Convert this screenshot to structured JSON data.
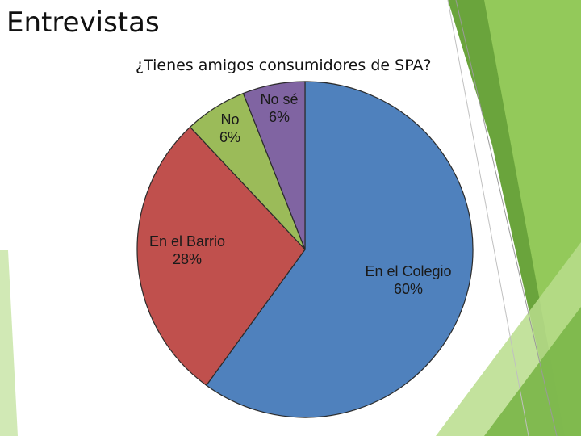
{
  "slide": {
    "title": "Entrevistas"
  },
  "chart_data": {
    "type": "pie",
    "title": "¿Tienes amigos consumidores de SPA?",
    "slices": [
      {
        "label": "En el Colegio",
        "value": 60,
        "display": "60%",
        "color": "#4f81bd"
      },
      {
        "label": "En el Barrio",
        "value": 28,
        "display": "28%",
        "color": "#c0504d"
      },
      {
        "label": "No",
        "value": 6,
        "display": "6%",
        "color": "#9bbb59"
      },
      {
        "label": "No sé",
        "value": 6,
        "display": "6%",
        "color": "#8064a2"
      }
    ]
  }
}
